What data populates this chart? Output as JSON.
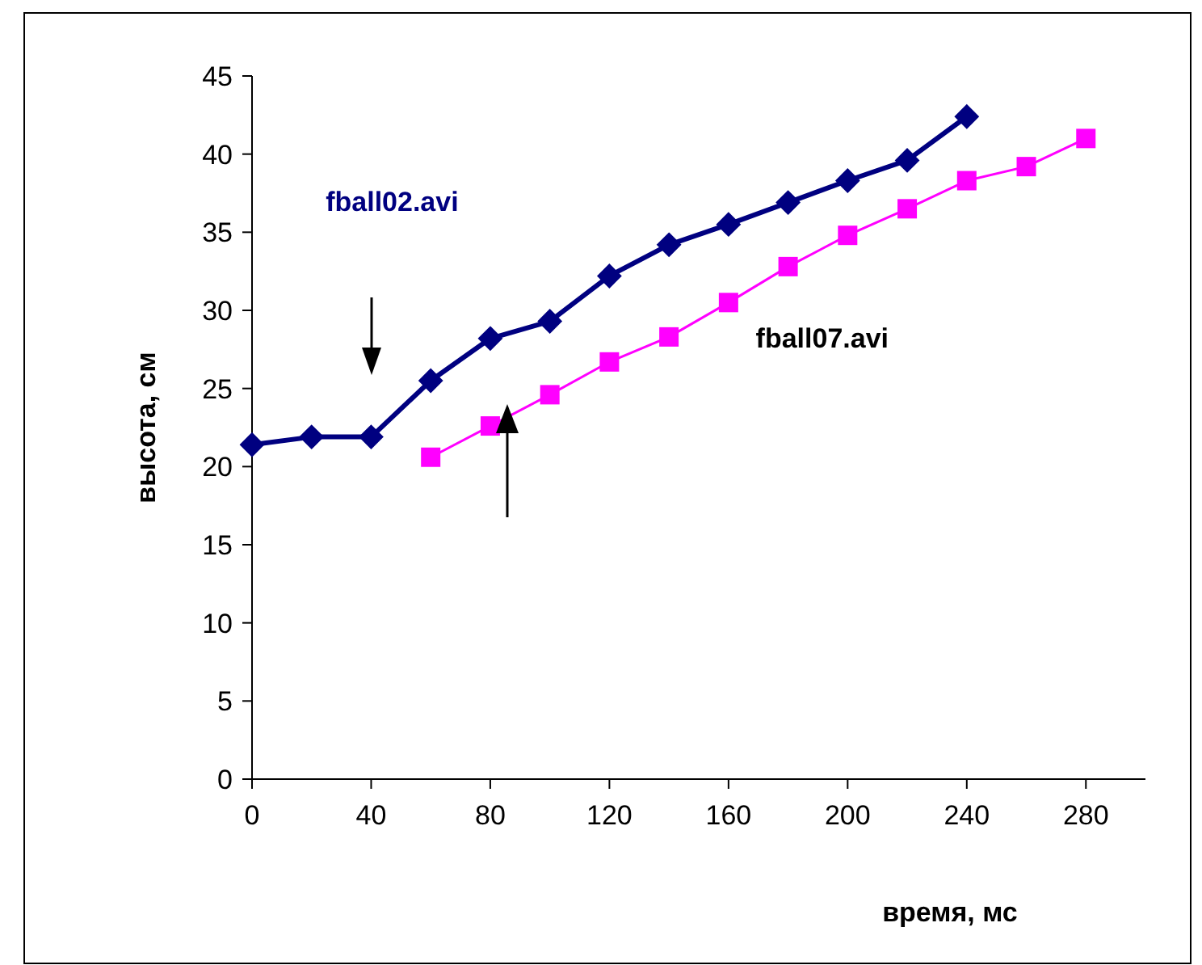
{
  "chart_data": {
    "type": "line",
    "xlabel": "время, мс",
    "ylabel": "высота, см",
    "xlim": [
      0,
      300
    ],
    "xticks": [
      0,
      40,
      80,
      120,
      160,
      200,
      240,
      280
    ],
    "ylim": [
      0,
      45
    ],
    "yticks": [
      0,
      5,
      10,
      15,
      20,
      25,
      30,
      35,
      40,
      45
    ],
    "grid": false,
    "series": [
      {
        "name": "fball02.avi",
        "color": "#000080",
        "marker": "diamond",
        "x": [
          0,
          20,
          40,
          60,
          80,
          100,
          120,
          140,
          160,
          180,
          200,
          220,
          240
        ],
        "values": [
          21.4,
          21.9,
          21.9,
          25.5,
          28.2,
          29.3,
          32.2,
          34.2,
          35.5,
          36.9,
          38.3,
          39.6,
          42.4
        ]
      },
      {
        "name": "fball07.avi",
        "color": "#ff00ff",
        "marker": "square",
        "x": [
          60,
          80,
          100,
          120,
          140,
          160,
          180,
          200,
          220,
          240,
          260,
          280
        ],
        "values": [
          20.6,
          22.6,
          24.6,
          26.7,
          28.3,
          30.5,
          32.8,
          34.8,
          36.5,
          38.3,
          39.2,
          41.0
        ]
      }
    ]
  }
}
